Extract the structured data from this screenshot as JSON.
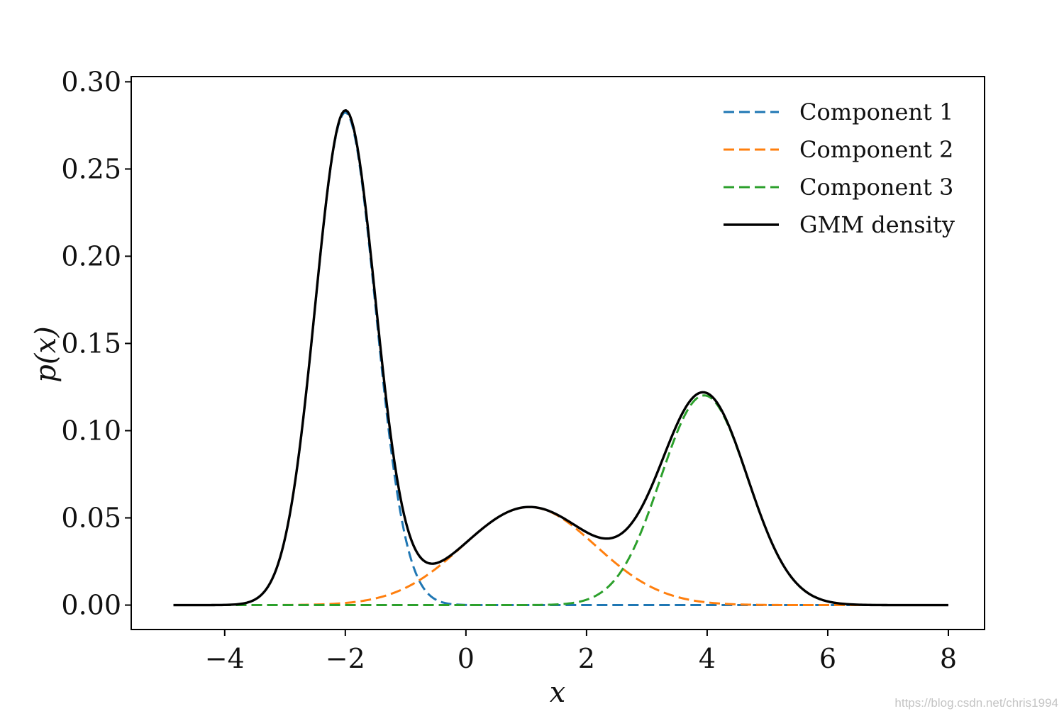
{
  "chart_data": {
    "type": "line",
    "title": "",
    "xlabel": "x",
    "ylabel": "p(x)",
    "xlim": [
      -5.55,
      8.6
    ],
    "ylim": [
      -0.014,
      0.303
    ],
    "x_ticks": [
      -4,
      -2,
      0,
      2,
      4,
      6,
      8
    ],
    "x_tick_labels": [
      "−4",
      "−2",
      "0",
      "2",
      "4",
      "6",
      "8"
    ],
    "y_ticks": [
      0.0,
      0.05,
      0.1,
      0.15,
      0.2,
      0.25,
      0.3
    ],
    "y_tick_labels": [
      "0.00",
      "0.05",
      "0.10",
      "0.15",
      "0.20",
      "0.25",
      "0.30"
    ],
    "x_range": [
      -4.85,
      8.0
    ],
    "grid": false,
    "legend_position": "top-right",
    "series": [
      {
        "name": "Component 1",
        "color": "#1f77b4",
        "style": "dashed",
        "gaussian": {
          "mean": -2.0,
          "std": 0.5,
          "weight": 0.354
        }
      },
      {
        "name": "Component 2",
        "color": "#ff7f0e",
        "style": "dashed",
        "gaussian": {
          "mean": 1.05,
          "std": 1.1,
          "weight": 0.155
        }
      },
      {
        "name": "Component 3",
        "color": "#2ca02c",
        "style": "dashed",
        "gaussian": {
          "mean": 3.95,
          "std": 0.72,
          "weight": 0.217
        }
      },
      {
        "name": "GMM density",
        "color": "#000000",
        "style": "solid",
        "sum_of_components": true
      }
    ]
  },
  "watermark": "https://blog.csdn.net/chris1994"
}
